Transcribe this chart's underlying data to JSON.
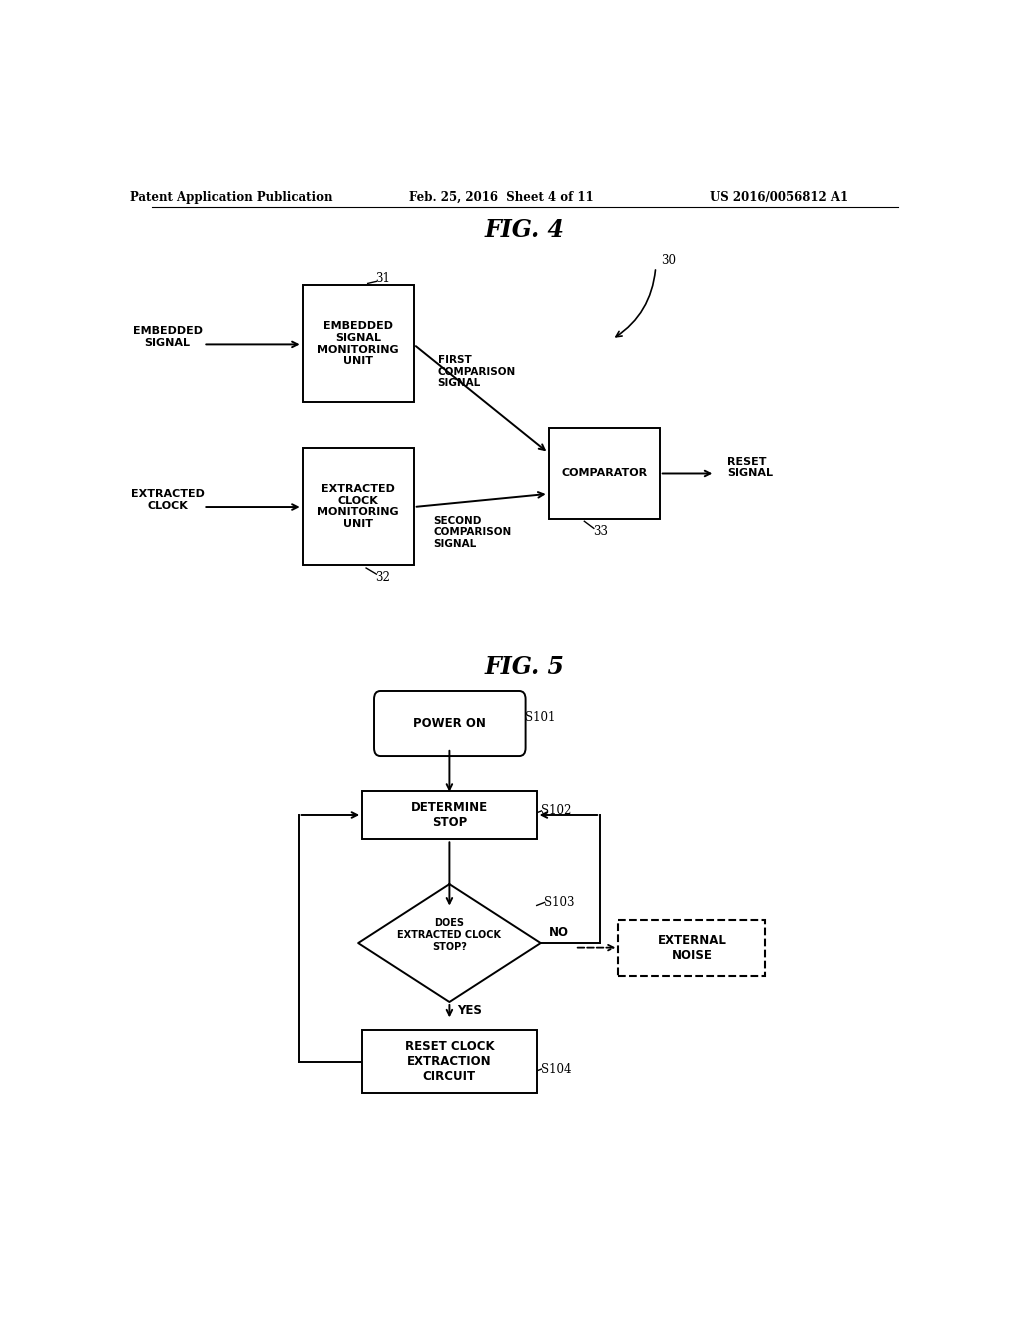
{
  "bg_color": "#ffffff",
  "header_text": "Patent Application Publication",
  "header_date": "Feb. 25, 2016  Sheet 4 of 11",
  "header_patent": "US 2016/0056812 A1",
  "fig4_title": "FIG. 4",
  "fig5_title": "FIG. 5"
}
